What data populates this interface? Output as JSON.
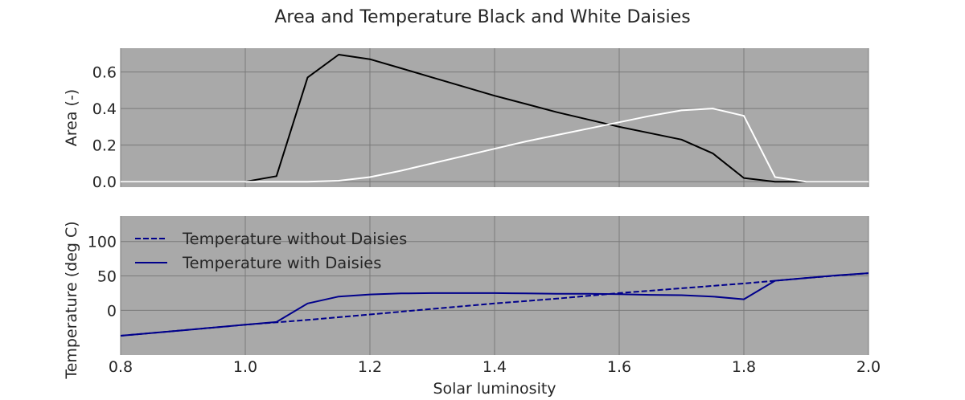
{
  "chart_data": {
    "title": "Area and Temperature Black and White Daisies",
    "xlabel": "Solar luminosity",
    "xlim": [
      0.8,
      2.0
    ],
    "x_ticks": [
      "0.8",
      "1.0",
      "1.2",
      "1.4",
      "1.6",
      "1.8",
      "2.0"
    ],
    "background": "#a9a9a9",
    "grid": true,
    "panels": [
      {
        "type": "line",
        "ylabel": "Area (-)",
        "ylim": [
          -0.03,
          0.73
        ],
        "y_ticks": [
          "0.0",
          "0.2",
          "0.4",
          "0.6"
        ],
        "series": [
          {
            "color": "#000000",
            "style": "solid",
            "x": [
              0.8,
              0.85,
              0.9,
              0.95,
              1.0,
              1.05,
              1.1,
              1.15,
              1.2,
              1.25,
              1.3,
              1.35,
              1.4,
              1.45,
              1.5,
              1.55,
              1.6,
              1.65,
              1.7,
              1.75,
              1.8,
              1.85,
              1.9,
              1.95,
              2.0
            ],
            "y": [
              0.0,
              0.0,
              0.0,
              0.0,
              0.0,
              0.03,
              0.57,
              0.695,
              0.67,
              0.62,
              0.57,
              0.52,
              0.47,
              0.425,
              0.38,
              0.34,
              0.3,
              0.265,
              0.23,
              0.155,
              0.02,
              0.0,
              0.0,
              0.0,
              0.0
            ]
          },
          {
            "color": "#ffffff",
            "style": "solid",
            "x": [
              0.8,
              0.85,
              0.9,
              0.95,
              1.0,
              1.05,
              1.1,
              1.15,
              1.2,
              1.25,
              1.3,
              1.35,
              1.4,
              1.45,
              1.5,
              1.55,
              1.6,
              1.65,
              1.7,
              1.75,
              1.8,
              1.85,
              1.9,
              1.95,
              2.0
            ],
            "y": [
              0.0,
              0.0,
              0.0,
              0.0,
              0.0,
              0.0,
              0.0,
              0.005,
              0.025,
              0.06,
              0.1,
              0.14,
              0.18,
              0.22,
              0.255,
              0.29,
              0.325,
              0.36,
              0.39,
              0.4,
              0.36,
              0.025,
              0.0,
              0.0,
              0.0
            ]
          }
        ]
      },
      {
        "type": "line",
        "ylabel": "Temperature (deg C)",
        "ylim": [
          -65,
          137
        ],
        "y_ticks": [
          "0",
          "50",
          "100"
        ],
        "legend": {
          "loc": "upper left"
        },
        "series": [
          {
            "name": "Temperature without Daisies",
            "color": "#00008b",
            "style": "dashed",
            "x": [
              0.8,
              0.9,
              1.0,
              1.1,
              1.2,
              1.3,
              1.4,
              1.5,
              1.6,
              1.7,
              1.8,
              1.9,
              2.0
            ],
            "y": [
              -37,
              -29,
              -21,
              -14,
              -6,
              2,
              10,
              17,
              25,
              32,
              39,
              47,
              54
            ]
          },
          {
            "name": "Temperature with Daisies",
            "color": "#00008b",
            "style": "solid",
            "x": [
              0.8,
              0.85,
              0.9,
              0.95,
              1.0,
              1.05,
              1.1,
              1.15,
              1.2,
              1.25,
              1.3,
              1.35,
              1.4,
              1.45,
              1.5,
              1.55,
              1.6,
              1.65,
              1.7,
              1.75,
              1.8,
              1.85,
              1.9,
              1.95,
              2.0
            ],
            "y": [
              -37,
              -33,
              -29,
              -25,
              -21,
              -17,
              10,
              20,
              23,
              24.5,
              25,
              25,
              25,
              24.5,
              24,
              24,
              23.5,
              22.5,
              22,
              20,
              16,
              43,
              47,
              51,
              54
            ]
          }
        ]
      }
    ]
  }
}
